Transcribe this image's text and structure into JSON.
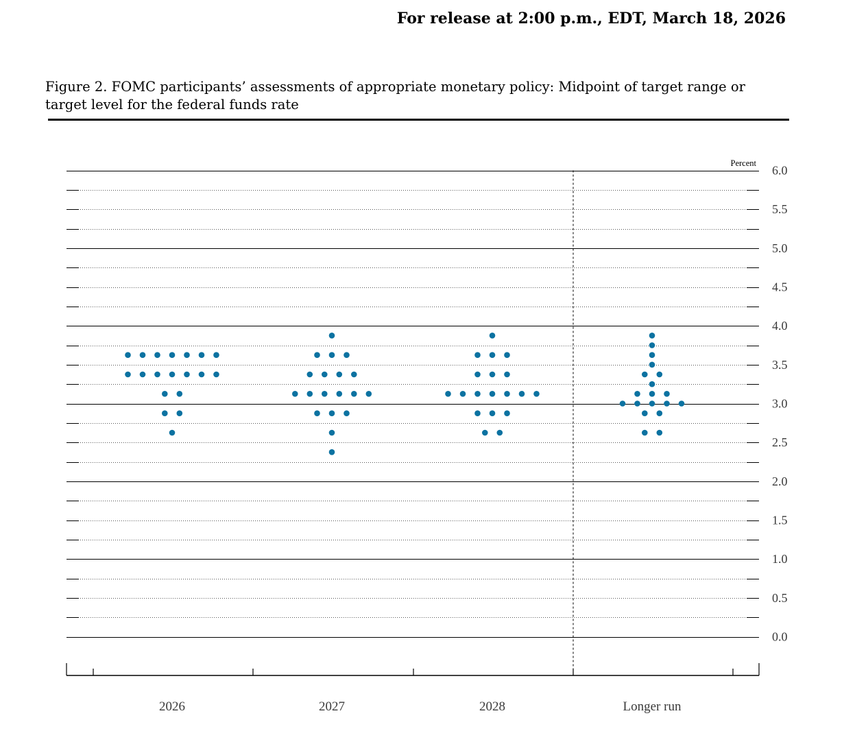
{
  "header": {
    "release": "For release at 2:00 p.m., EDT, March 18, 2026",
    "figure_title": "Figure 2. FOMC participants’ assessments of appropriate monetary policy: Midpoint of target range or target level for the federal funds rate"
  },
  "colors": {
    "dot": "#0b72a1",
    "axis": "#000000",
    "grid": "#555555"
  },
  "chart_data": {
    "type": "scatter",
    "title": "",
    "unit_label": "Percent",
    "xlabel": "",
    "ylabel": "",
    "ylim": [
      0.0,
      6.0
    ],
    "y_ticks": [
      "6.0",
      "5.5",
      "5.0",
      "4.5",
      "4.0",
      "3.5",
      "3.0",
      "2.5",
      "2.0",
      "1.5",
      "1.0",
      "0.5",
      "0.0"
    ],
    "categories": [
      "2026",
      "2027",
      "2028",
      "Longer run"
    ],
    "dots": [
      {
        "category": "2026",
        "levels": [
          {
            "rate": 3.625,
            "count": 7
          },
          {
            "rate": 3.375,
            "count": 7
          },
          {
            "rate": 3.125,
            "count": 2
          },
          {
            "rate": 2.875,
            "count": 2
          },
          {
            "rate": 2.625,
            "count": 1
          }
        ]
      },
      {
        "category": "2027",
        "levels": [
          {
            "rate": 3.875,
            "count": 1
          },
          {
            "rate": 3.625,
            "count": 3
          },
          {
            "rate": 3.375,
            "count": 4
          },
          {
            "rate": 3.125,
            "count": 6
          },
          {
            "rate": 2.875,
            "count": 3
          },
          {
            "rate": 2.625,
            "count": 1
          },
          {
            "rate": 2.375,
            "count": 1
          }
        ]
      },
      {
        "category": "2028",
        "levels": [
          {
            "rate": 3.875,
            "count": 1
          },
          {
            "rate": 3.625,
            "count": 3
          },
          {
            "rate": 3.375,
            "count": 3
          },
          {
            "rate": 3.125,
            "count": 7
          },
          {
            "rate": 2.875,
            "count": 3
          },
          {
            "rate": 2.625,
            "count": 2
          }
        ]
      },
      {
        "category": "Longer run",
        "levels": [
          {
            "rate": 3.875,
            "count": 1
          },
          {
            "rate": 3.75,
            "count": 1
          },
          {
            "rate": 3.625,
            "count": 1
          },
          {
            "rate": 3.5,
            "count": 1
          },
          {
            "rate": 3.375,
            "count": 2
          },
          {
            "rate": 3.25,
            "count": 1
          },
          {
            "rate": 3.125,
            "count": 3
          },
          {
            "rate": 3.0,
            "count": 5
          },
          {
            "rate": 2.875,
            "count": 2
          },
          {
            "rate": 2.625,
            "count": 2
          }
        ]
      }
    ]
  }
}
